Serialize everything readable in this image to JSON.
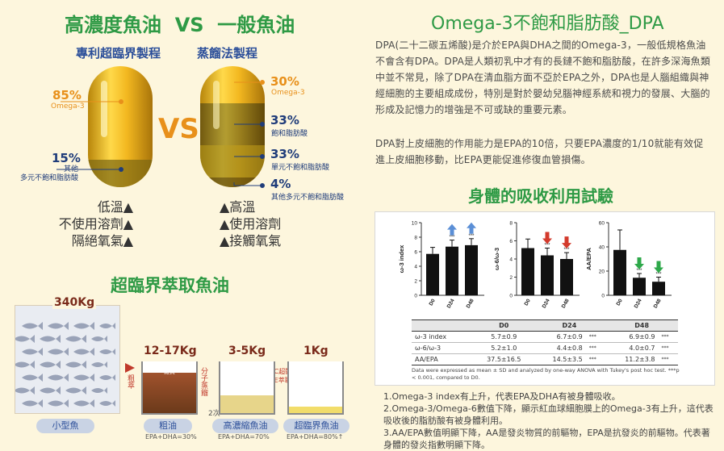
{
  "left_title": "高濃度魚油  VS  一般魚油",
  "patent_label": "專利超臨界製程",
  "distill_label": "蒸餾法製程",
  "vs": "VS",
  "left_capsule": {
    "pct1": "85%",
    "pct1_name": "Omega-3",
    "pct2": "15%",
    "pct2_name": "其他\n多元不飽和脂肪酸"
  },
  "right_capsule": {
    "pct1": "30%",
    "pct1_name": "Omega-3",
    "pct2": "33%",
    "pct2_name": "飽和脂肪酸",
    "pct3": "33%",
    "pct3_name": "單元不飽和脂肪酸",
    "pct4": "4%",
    "pct4_name": "其他多元不飽和脂肪酸"
  },
  "left_features": [
    "低溫▲",
    "不使用溶劑▲",
    "隔絕氧氣▲"
  ],
  "right_features": [
    "▲高溫",
    "▲使用溶劑",
    "▲接觸氧氣"
  ],
  "process_title": "超臨界萃取魚油",
  "process": {
    "w1": "340Kg",
    "w2": "12-17Kg",
    "w3": "3-5Kg",
    "w4": "1Kg",
    "a1": "粗萃",
    "a2": "分子蒸餾",
    "a2b": "2次",
    "a3": "SFC超臨界\nSFE萃取",
    "names": [
      "小型魚",
      "粗油",
      "高濃縮魚油",
      "超臨界魚油"
    ],
    "notes": [
      "EPA+DHA=30%",
      "EPA+DHA=70%",
      "EPA+DHA=80%↑"
    ],
    "impurity": "雜質"
  },
  "right_title": "Omega-3不飽和脂肪酸_DPA",
  "dpa_para1": "DPA(二十二碳五烯酸)是介於EPA與DHA之間的Omega-3，一般低規格魚油不會含有DPA。DPA是人類初乳中才有的長鏈不飽和脂肪酸，在許多深海魚類中並不常見，除了DPA在清血脂方面不亞於EPA之外，DPA也是人腦組織與神經細胞的主要組成成份，特別是對於嬰幼兒腦神經系統和視力的發展、大腦的形成及記憶力的增強是不可或缺的重要元素。",
  "dpa_para2": "DPA對上皮細胞的作用能力是EPA的10倍，只要EPA濃度的1/10就能有效促進上皮細胞移動，比EPA更能促進修復血管損傷。",
  "absorb_title": "身體的吸收利用試驗",
  "chart_data": [
    {
      "type": "bar",
      "ylabel": "ω-3 index",
      "categories": [
        "D0",
        "D24",
        "D48"
      ],
      "values": [
        5.7,
        6.7,
        6.9
      ],
      "errors": [
        0.9,
        0.9,
        0.9
      ],
      "ylim": [
        0,
        10
      ],
      "yticks": [
        0,
        2,
        4,
        6,
        8,
        10
      ],
      "significance": [
        "",
        "***",
        "***"
      ],
      "arrows": [
        "",
        "up",
        "up"
      ]
    },
    {
      "type": "bar",
      "ylabel": "ω-6/ω-3",
      "categories": [
        "D0",
        "D24",
        "D48"
      ],
      "values": [
        5.2,
        4.4,
        4.0
      ],
      "errors": [
        1.0,
        0.8,
        0.7
      ],
      "ylim": [
        0,
        8
      ],
      "yticks": [
        0,
        2,
        4,
        6,
        8
      ],
      "significance": [
        "",
        "***",
        "***"
      ],
      "arrows": [
        "",
        "down",
        "down"
      ]
    },
    {
      "type": "bar",
      "ylabel": "AA/EPA",
      "categories": [
        "D0",
        "D24",
        "D48"
      ],
      "values": [
        37.5,
        14.5,
        11.2
      ],
      "errors": [
        16.5,
        3.5,
        3.8
      ],
      "ylim": [
        0,
        60
      ],
      "yticks": [
        0,
        20,
        40,
        60
      ],
      "significance": [
        "",
        "***",
        "***"
      ],
      "arrows": [
        "",
        "down",
        "down"
      ]
    }
  ],
  "table": {
    "headers": [
      "",
      "D0",
      "D24",
      "D48"
    ],
    "rows": [
      [
        "ω-3 index",
        "5.7±0.9",
        "6.7±0.9",
        "***",
        "6.9±0.9",
        "***"
      ],
      [
        "ω-6/ω-3",
        "5.2±1.0",
        "4.4±0.8",
        "***",
        "4.0±0.7",
        "***"
      ],
      [
        "AA/EPA",
        "37.5±16.5",
        "14.5±3.5",
        "***",
        "11.2±3.8",
        "***"
      ]
    ],
    "footnote": "Data were expressed as mean ± SD and analyzed by one-way ANOVA with Tukey's post hoc test. ***p < 0.001, compared to D0."
  },
  "notes": [
    "1.Omega-3 index有上升，代表EPA及DHA有被身體吸收。",
    "2.Omega-3/Omega-6數值下降，顯示紅血球細胞膜上的Omega-3有上升，這代表吸收後的脂肪酸有被身體利用。",
    "3.AA/EPA數值明顯下降，AA是發炎物質的前驅物，EPA是抗發炎的前驅物。代表著身體的發炎指數明顯下降。"
  ]
}
